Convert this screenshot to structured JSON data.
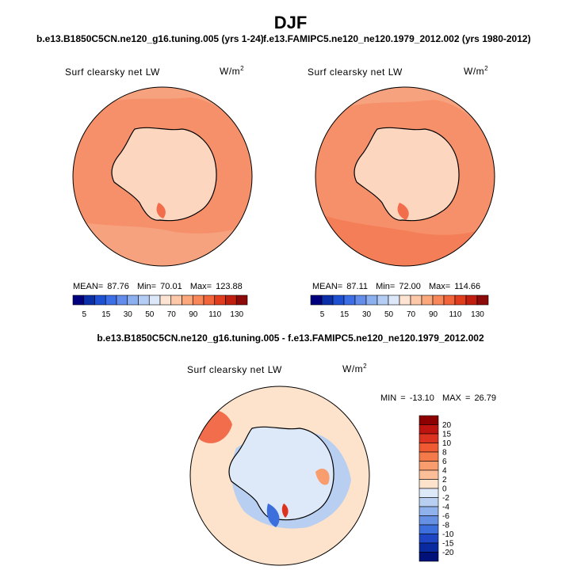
{
  "season": "DJF",
  "panel_left": {
    "case_title": "b.e13.B1850C5CN.ne120_g16.tuning.005 (yrs 1-24)",
    "variable": "Surf clearsky net LW",
    "units_base": "W/m",
    "units_exp": "2",
    "mean_label": "MEAN=",
    "mean": "87.76",
    "min_label": "Min=",
    "min": "70.01",
    "max_label": "Max=",
    "max": "123.88"
  },
  "panel_right": {
    "case_title": "f.e13.FAMIPC5.ne120_ne120.1979_2012.002 (yrs 1980-2012)",
    "variable": "Surf clearsky net LW",
    "units_base": "W/m",
    "units_exp": "2",
    "mean_label": "MEAN=",
    "mean": "87.11",
    "min_label": "Min=",
    "min": "72.00",
    "max_label": "Max=",
    "max": "114.66"
  },
  "panel_diff": {
    "case_title": "b.e13.B1850C5CN.ne120_g16.tuning.005 - f.e13.FAMIPC5.ne120_ne120.1979_2012.002",
    "variable": "Surf clearsky net LW",
    "units_base": "W/m",
    "units_exp": "2",
    "min_label": "MIN =",
    "min": "-13.10",
    "max_label": "MAX =",
    "max": "26.79"
  },
  "abs_colorbar": {
    "labels": [
      "5",
      "15",
      "30",
      "50",
      "70",
      "90",
      "110",
      "130"
    ],
    "colors": [
      "#00007f",
      "#0a2fa8",
      "#1e50d2",
      "#3c6ee6",
      "#648ceb",
      "#8caff0",
      "#b4cdf5",
      "#dce8fa",
      "#fde3d2",
      "#fcc8a8",
      "#fba87d",
      "#f8885a",
      "#f2643a",
      "#e03c1e",
      "#c01e0f",
      "#8c0a0a"
    ]
  },
  "diff_colorbar": {
    "labels": [
      "20",
      "15",
      "10",
      "8",
      "6",
      "4",
      "2",
      "0",
      "-2",
      "-4",
      "-6",
      "-8",
      "-10",
      "-15",
      "-20"
    ],
    "colors": [
      "#8c0000",
      "#be1410",
      "#dc3220",
      "#f05a32",
      "#f57a4a",
      "#f99c6e",
      "#fcbe98",
      "#fde2cc",
      "#dde9f8",
      "#b8cff2",
      "#8fb2ec",
      "#6690e4",
      "#3c6edc",
      "#1e46c4",
      "#0a2aa0",
      "#00127a"
    ]
  },
  "colors": {
    "ocean_left": "#f6906a",
    "ocean_right": "#f6906a",
    "land": "#fdd6c0",
    "diff_ocean": "#fde2cc",
    "diff_land": "#dde9f8"
  }
}
